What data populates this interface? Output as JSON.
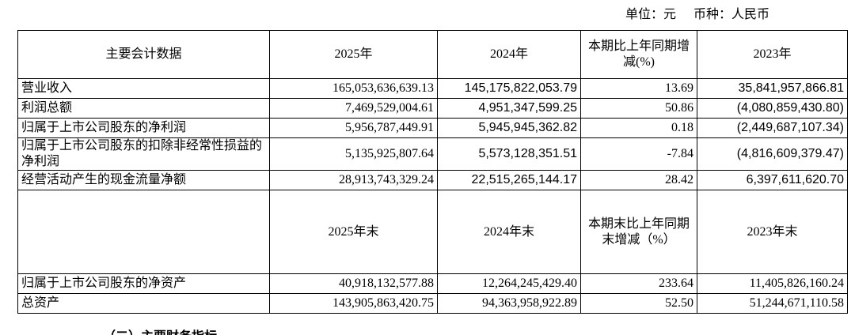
{
  "unit": {
    "currency_unit": "单位：元",
    "currency": "币种：人民币"
  },
  "table": {
    "header": [
      "主要会计数据",
      "2025年",
      "2024年",
      "本期比上年同期增减(%)",
      "2023年"
    ],
    "rows": [
      [
        "营业收入",
        "165,053,636,639.13",
        "145,175,822,053.79",
        "13.69",
        "35,841,957,866.81"
      ],
      [
        "利润总额",
        "7,469,529,004.61",
        "4,951,347,599.25",
        "50.86",
        "(4,080,859,430.80)"
      ],
      [
        "归属于上市公司股东的净利润",
        "5,956,787,449.91",
        "5,945,945,362.82",
        "0.18",
        "(2,449,687,107.34)"
      ],
      [
        "归属于上市公司股东的扣除非经常性损益的净利润",
        "5,135,925,807.64",
        "5,573,128,351.51",
        "-7.84",
        "(4,816,609,379.47)"
      ],
      [
        "经营活动产生的现金流量净额",
        "28,913,743,329.24",
        "22,515,265,144.17",
        "28.42",
        "6,397,611,620.70"
      ]
    ],
    "header2": [
      "",
      "2025年末",
      "2024年末",
      "本期末比上年同期末增减（%）",
      "2023年末"
    ],
    "rows2": [
      [
        "归属于上市公司股东的净资产",
        "40,918,132,577.88",
        "12,264,245,429.40",
        "233.64",
        "11,405,826,160.24"
      ],
      [
        "总资产",
        "143,905,863,420.75",
        "94,363,958,922.89",
        "52.50",
        "51,244,671,110.58"
      ]
    ]
  },
  "next_section": "（二）主要财务指标"
}
